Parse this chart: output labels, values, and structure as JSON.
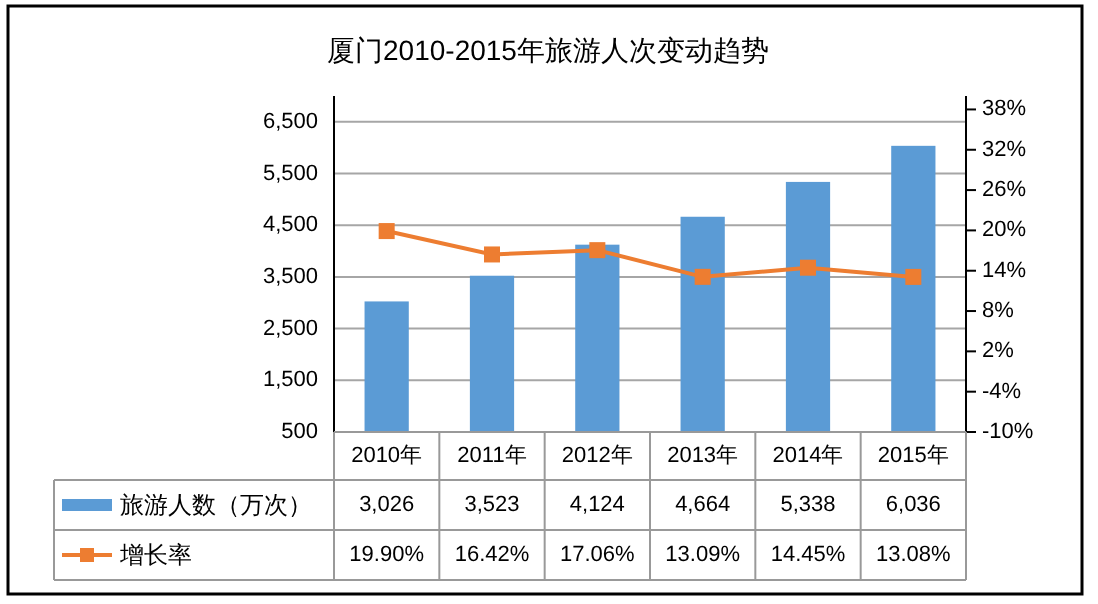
{
  "chart_data": {
    "type": "bar",
    "title": "厦门2010-2015年旅游人次变动趋势",
    "categories": [
      "2010年",
      "2011年",
      "2012年",
      "2013年",
      "2014年",
      "2015年"
    ],
    "series": [
      {
        "name": "旅游人数（万次）",
        "color": "#5b9bd5",
        "values": [
          3026,
          3523,
          4124,
          4664,
          5338,
          6036
        ],
        "value_labels": [
          "3,026",
          "3,523",
          "4,124",
          "4,664",
          "5,338",
          "6,036"
        ]
      },
      {
        "name": "增长率",
        "type": "line",
        "axis": "y2",
        "color": "#ed7d31",
        "values": [
          19.9,
          16.42,
          17.06,
          13.09,
          14.45,
          13.08
        ],
        "value_labels": [
          "19.90%",
          "16.42%",
          "17.06%",
          "13.09%",
          "14.45%",
          "13.08%"
        ]
      }
    ],
    "ylim": [
      500,
      7000
    ],
    "yticks": [
      {
        "value": 500,
        "label": "500"
      },
      {
        "value": 1500,
        "label": "1,500"
      },
      {
        "value": 2500,
        "label": "2,500"
      },
      {
        "value": 3500,
        "label": "3,500"
      },
      {
        "value": 4500,
        "label": "4,500"
      },
      {
        "value": 5500,
        "label": "5,500"
      },
      {
        "value": 6500,
        "label": "6,500"
      }
    ],
    "y2lim": [
      -10,
      40
    ],
    "y2ticks": [
      {
        "value": -10,
        "label": "-10%"
      },
      {
        "value": -4,
        "label": "-4%"
      },
      {
        "value": 2,
        "label": "2%"
      },
      {
        "value": 8,
        "label": "8%"
      },
      {
        "value": 14,
        "label": "14%"
      },
      {
        "value": 20,
        "label": "20%"
      },
      {
        "value": 26,
        "label": "26%"
      },
      {
        "value": 32,
        "label": "32%"
      },
      {
        "value": 38,
        "label": "38%"
      }
    ],
    "grid": "y",
    "legend": "bottom",
    "marker": "square",
    "line_style": "solid"
  }
}
